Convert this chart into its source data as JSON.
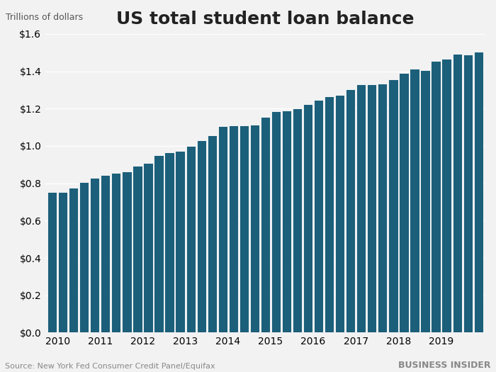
{
  "title": "US total student loan balance",
  "ylabel_top": "Trillions of dollars",
  "source": "Source: New York Fed Consumer Credit Panel/Equifax",
  "watermark": "BUSINESS INSIDER",
  "bar_color": "#1c5f7a",
  "background_color": "#f2f2f2",
  "plot_bg_color": "#f2f2f2",
  "ylim": [
    0,
    1.6
  ],
  "yticks": [
    0.0,
    0.2,
    0.4,
    0.6,
    0.8,
    1.0,
    1.2,
    1.4,
    1.6
  ],
  "values": [
    0.755,
    0.755,
    0.775,
    0.805,
    0.83,
    0.845,
    0.855,
    0.865,
    0.895,
    0.91,
    0.95,
    0.965,
    0.975,
    1.0,
    1.03,
    1.055,
    1.105,
    1.11,
    1.11,
    1.115,
    1.155,
    1.185,
    1.19,
    1.2,
    1.225,
    1.245,
    1.265,
    1.275,
    1.305,
    1.33,
    1.33,
    1.335,
    1.355,
    1.39,
    1.415,
    1.405,
    1.455,
    1.465,
    1.495,
    1.49,
    1.505
  ],
  "x_tick_positions": [
    0.5,
    4.5,
    8.5,
    12.5,
    16.5,
    20.5,
    24.5,
    28.5,
    32.5,
    36.5
  ],
  "x_tick_labels": [
    "2010",
    "2011",
    "2012",
    "2013",
    "2014",
    "2015",
    "2016",
    "2017",
    "2018",
    "2019"
  ],
  "grid_color": "#ffffff",
  "grid_linewidth": 1.0,
  "title_fontsize": 18,
  "tick_fontsize": 10,
  "source_fontsize": 8,
  "watermark_fontsize": 9
}
